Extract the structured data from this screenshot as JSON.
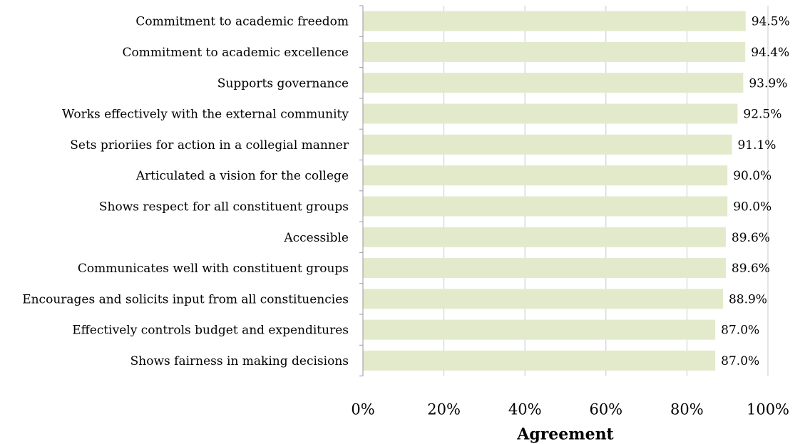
{
  "chart_data": {
    "type": "bar",
    "orientation": "horizontal",
    "categories": [
      "Commitment to academic freedom",
      "Commitment to academic excellence",
      "Supports governance",
      "Works effectively with the external community",
      "Sets prioriies for action in a collegial manner",
      "Articulated a vision for the college",
      "Shows respect for all constituent groups",
      "Accessible",
      "Communicates well with constituent groups",
      "Encourages and solicits input from all constituencies",
      "Effectively controls budget and expenditures",
      "Shows fairness in making decisions"
    ],
    "values": [
      94.5,
      94.4,
      93.9,
      92.5,
      91.1,
      90.0,
      90.0,
      89.6,
      89.6,
      88.9,
      87.0,
      87.0
    ],
    "value_labels": [
      "94.5%",
      "94.4%",
      "93.9%",
      "92.5%",
      "91.1%",
      "90.0%",
      "90.0%",
      "89.6%",
      "89.6%",
      "88.9%",
      "87.0%",
      "87.0%"
    ],
    "xlabel": "Agreement",
    "ylabel": "",
    "xlim": [
      0,
      100
    ],
    "x_ticks": [
      0,
      20,
      40,
      60,
      80,
      100
    ],
    "x_tick_labels": [
      "0%",
      "20%",
      "40%",
      "60%",
      "80%",
      "100%"
    ],
    "grid": true,
    "legend": "none",
    "colors": {
      "bar": "#e2eacb",
      "grid": "#c8c8c8",
      "axis": "#9a9a9a",
      "text": "#000000"
    }
  }
}
